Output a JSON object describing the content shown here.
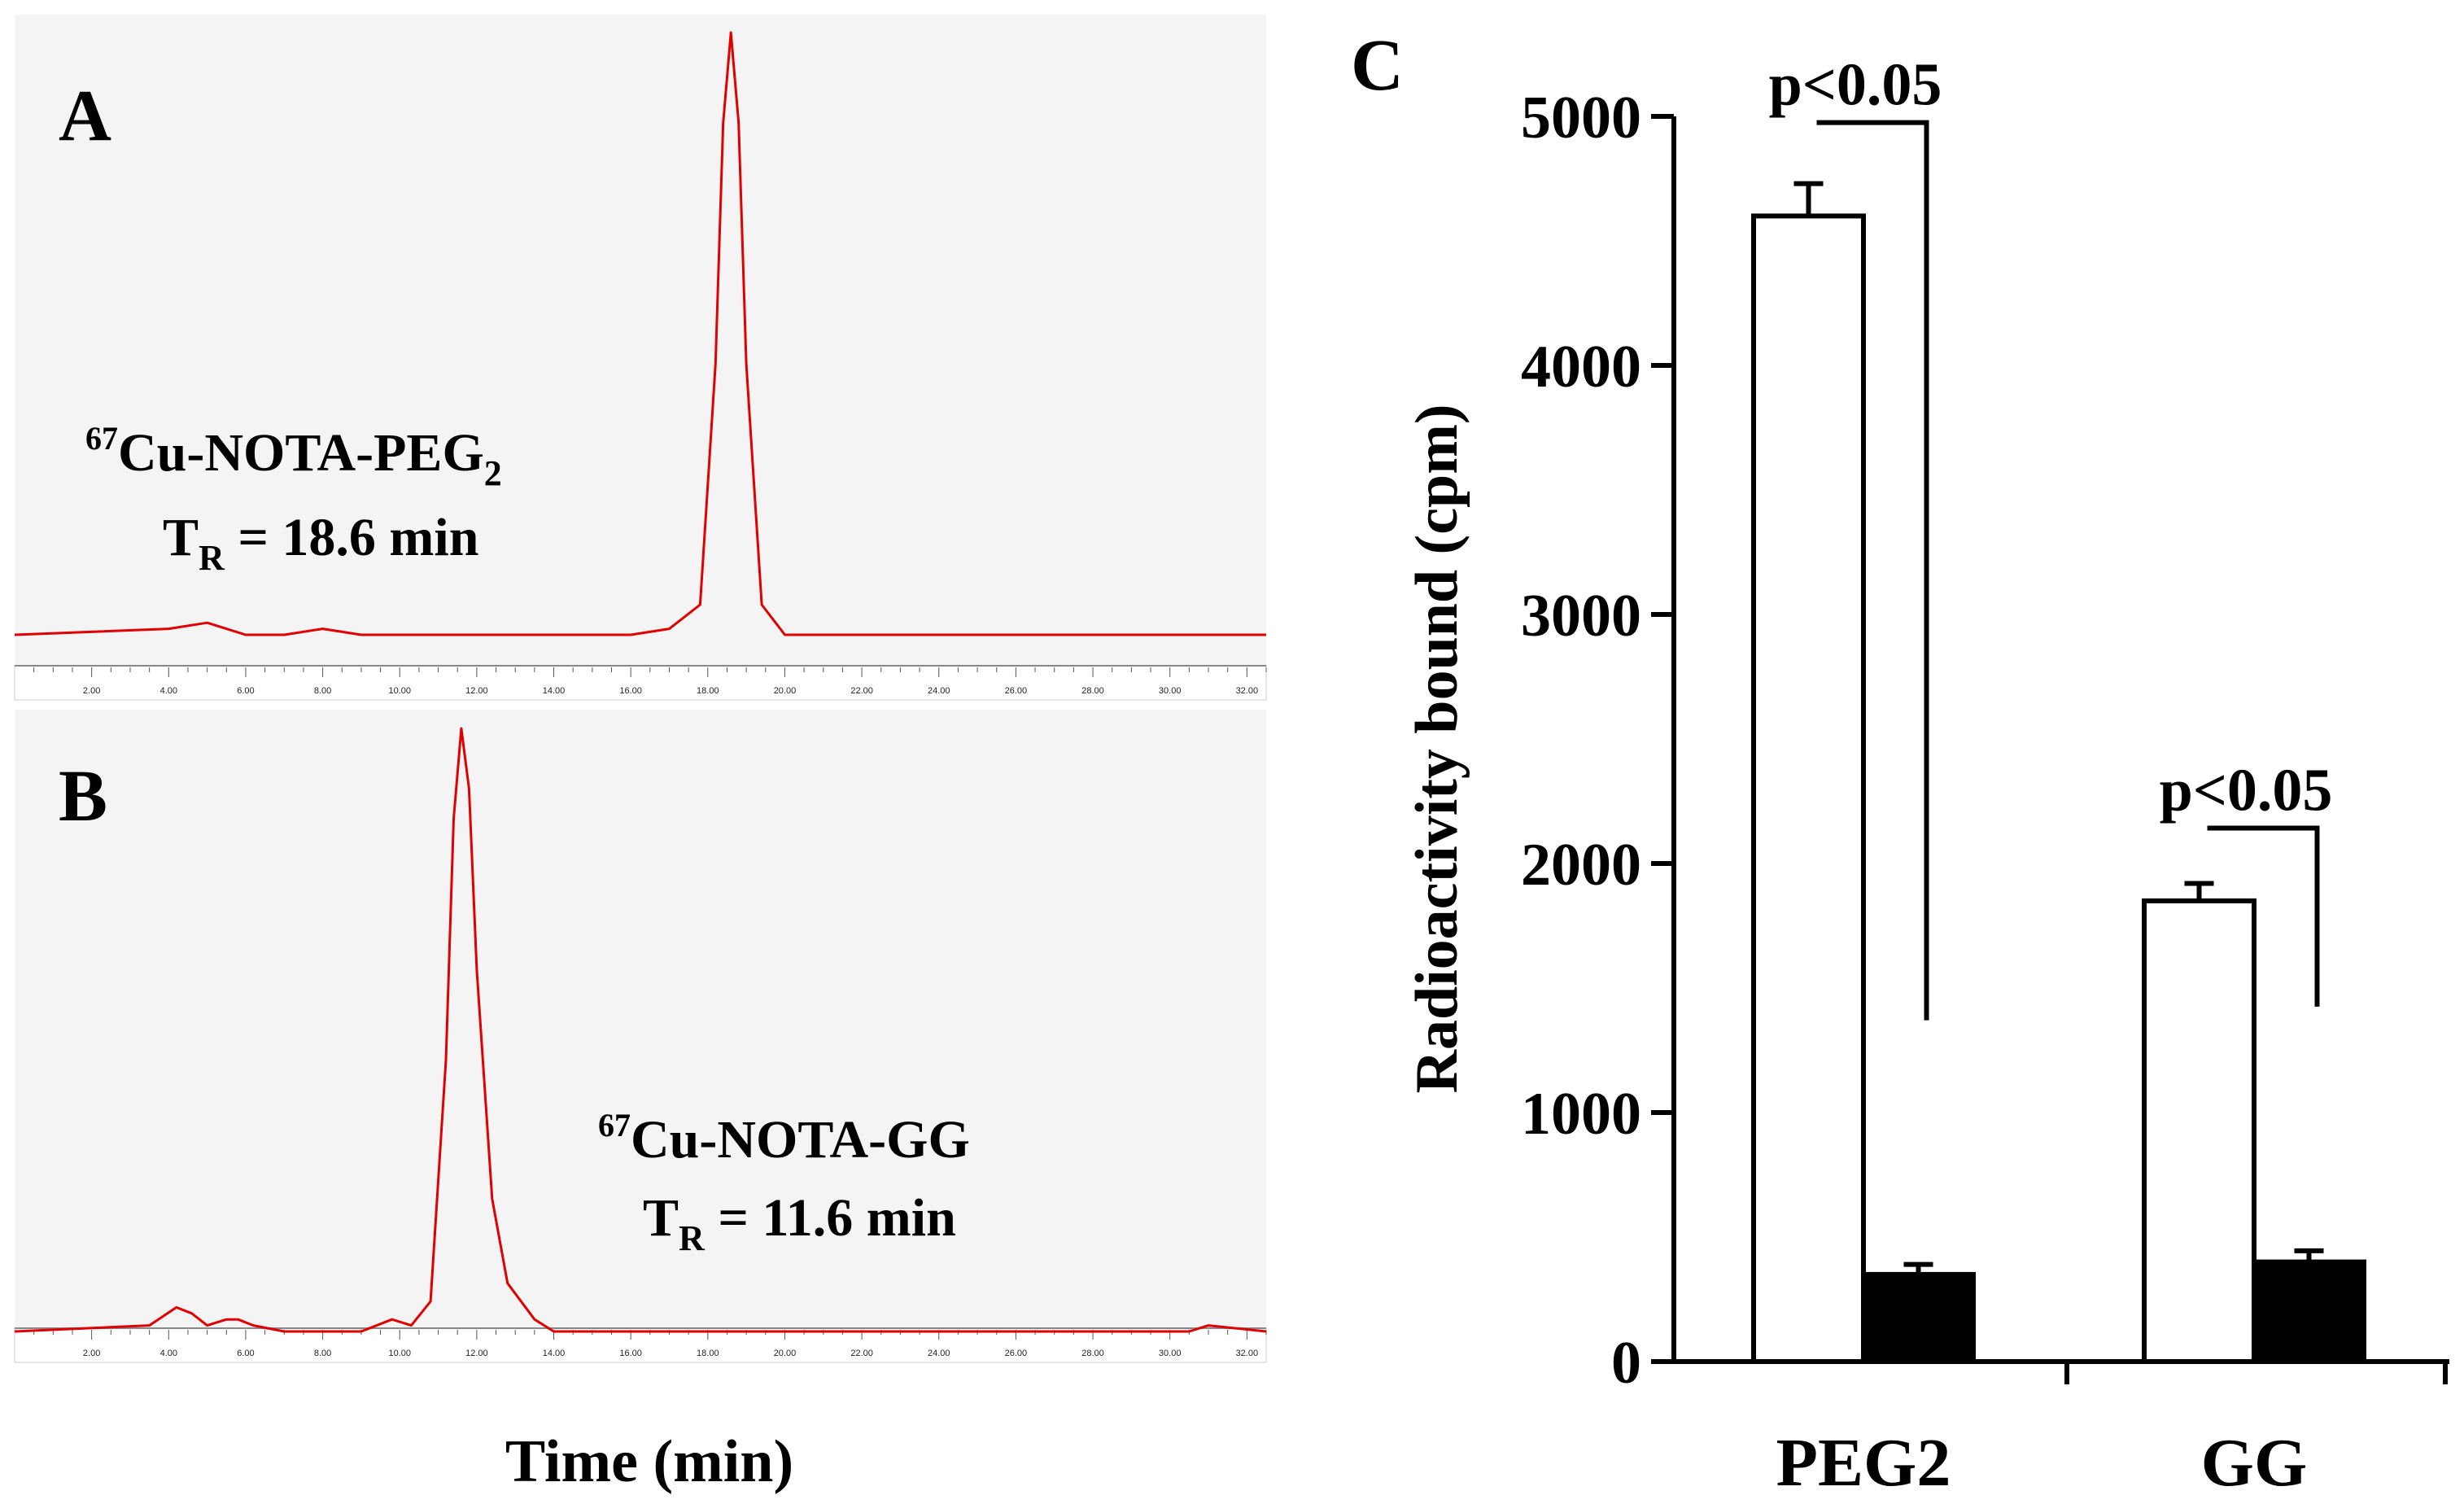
{
  "panels": {
    "A": {
      "letter": "A",
      "compound": "Cu-NOTA-PEG",
      "isotope": "67",
      "subscript": "2",
      "tr_prefix": "T",
      "tr_sub": "R",
      "tr_value": " = 18.6 min",
      "peak_min": 18.6
    },
    "B": {
      "letter": "B",
      "compound": "Cu-NOTA-GG",
      "isotope": "67",
      "tr_prefix": "T",
      "tr_sub": "R",
      "tr_value": " = 11.6 min",
      "peak_min": 11.6
    },
    "C": {
      "letter": "C"
    }
  },
  "time_axis": {
    "ticks": [
      "2.00",
      "4.00",
      "6.00",
      "8.00",
      "10.00",
      "12.00",
      "14.00",
      "16.00",
      "18.00",
      "20.00",
      "22.00",
      "24.00",
      "26.00",
      "28.00",
      "30.00",
      "32.00"
    ],
    "label": "Time (min)"
  },
  "chart_data": [
    {
      "type": "line",
      "panel": "A",
      "xlim": [
        0,
        32.5
      ],
      "xlabel": "Time (min)",
      "series": [
        {
          "name": "67Cu-NOTA-PEG2",
          "color": "#e00000",
          "x": [
            0,
            4,
            5,
            5.5,
            6,
            7,
            8,
            9,
            10,
            12,
            14,
            16,
            17,
            17.8,
            18.2,
            18.4,
            18.6,
            18.8,
            19.0,
            19.4,
            20,
            22,
            24,
            26,
            28,
            30,
            31,
            32.5
          ],
          "y": [
            0.0,
            0.01,
            0.02,
            0.01,
            0.0,
            0.0,
            0.01,
            0.0,
            0.0,
            0.0,
            0.0,
            0.0,
            0.01,
            0.05,
            0.45,
            0.85,
            1.0,
            0.85,
            0.45,
            0.05,
            0.0,
            0.0,
            0.0,
            0.0,
            0.0,
            0.0,
            0.0,
            0.0
          ]
        }
      ]
    },
    {
      "type": "line",
      "panel": "B",
      "xlim": [
        0,
        32.5
      ],
      "xlabel": "Time (min)",
      "series": [
        {
          "name": "67Cu-NOTA-GG",
          "color": "#e00000",
          "x": [
            0,
            3.5,
            4.2,
            4.6,
            5.0,
            5.5,
            5.8,
            6.2,
            7,
            8,
            9,
            9.8,
            10.3,
            10.8,
            11.2,
            11.4,
            11.6,
            11.8,
            12.0,
            12.4,
            12.8,
            13.5,
            14,
            16,
            20,
            24,
            28,
            30.5,
            31,
            32.5
          ],
          "y": [
            0.0,
            0.01,
            0.04,
            0.03,
            0.01,
            0.02,
            0.02,
            0.01,
            0.0,
            0.0,
            0.0,
            0.02,
            0.01,
            0.05,
            0.45,
            0.85,
            1.0,
            0.9,
            0.6,
            0.22,
            0.08,
            0.02,
            0.0,
            0.0,
            0.0,
            0.0,
            0.0,
            0.0,
            0.01,
            0.0
          ]
        }
      ]
    },
    {
      "type": "bar",
      "panel": "C",
      "categories": [
        "PEG2",
        "GG"
      ],
      "series": [
        {
          "name": "open",
          "color": "#ffffff",
          "values": [
            4600,
            1850
          ],
          "errors": [
            130,
            70
          ]
        },
        {
          "name": "filled",
          "color": "#000000",
          "values": [
            350,
            400
          ],
          "errors": [
            40,
            45
          ]
        }
      ],
      "ylabel": "Radioactivity bound (cpm)",
      "ylim": [
        0,
        5000
      ],
      "yticks": [
        "0",
        "1000",
        "2000",
        "3000",
        "4000",
        "5000"
      ],
      "annotations": [
        {
          "category": "PEG2",
          "text": "p<0.05"
        },
        {
          "category": "GG",
          "text": "p<0.05"
        }
      ]
    }
  ]
}
